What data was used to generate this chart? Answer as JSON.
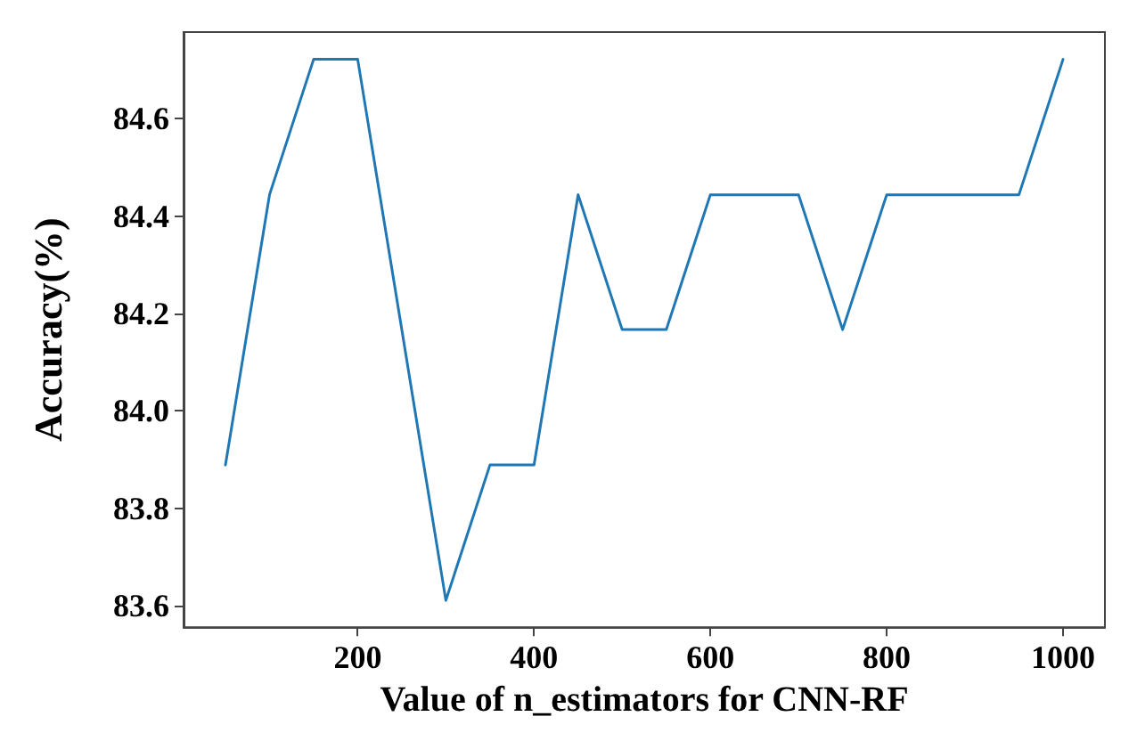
{
  "chart_data": {
    "type": "line",
    "xlabel": "Value of n_estimators for CNN-RF",
    "ylabel": "Accuracy(%)",
    "x": [
      50,
      100,
      150,
      200,
      250,
      300,
      350,
      400,
      450,
      500,
      550,
      600,
      650,
      700,
      750,
      800,
      850,
      900,
      950,
      1000
    ],
    "series": [
      {
        "color": "#1f77b4",
        "values": [
          83.889,
          84.444,
          84.722,
          84.722,
          84.167,
          83.611,
          83.889,
          83.889,
          84.444,
          84.167,
          84.167,
          84.444,
          84.444,
          84.444,
          84.167,
          84.444,
          84.444,
          84.444,
          84.444,
          84.722
        ]
      }
    ],
    "xlim": [
      2.5,
      1047.5
    ],
    "ylim": [
      83.556,
      84.778
    ],
    "xticks": [
      200,
      400,
      600,
      800,
      1000
    ],
    "yticks": [
      83.6,
      83.8,
      {
        "value": 84,
        "label": "84.0"
      },
      84.2,
      84.4,
      84.6
    ]
  }
}
